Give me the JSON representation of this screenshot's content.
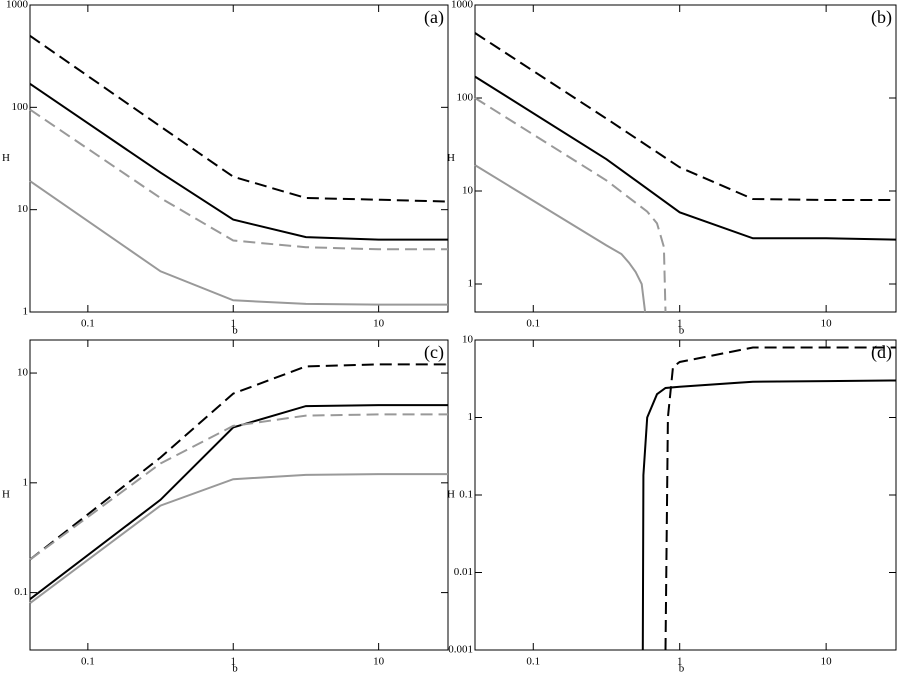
{
  "chart_data": [
    {
      "type": "line",
      "label": "(a)",
      "x_label": "b",
      "y_label": "H",
      "log_x": true,
      "log_y": true,
      "xlim": [
        0.04,
        30
      ],
      "ylim": [
        1,
        1000
      ],
      "xticks": [
        0.1,
        1,
        10
      ],
      "yticks": [
        1,
        10,
        100,
        1000
      ],
      "series": [
        {
          "color": "#000000",
          "style": "dashed",
          "x": [
            0.04,
            0.316,
            1,
            3.16,
            10,
            30
          ],
          "values": [
            500,
            65,
            21,
            13,
            12.5,
            12
          ]
        },
        {
          "color": "#000000",
          "style": "solid",
          "x": [
            0.04,
            0.316,
            1,
            3.16,
            10,
            30
          ],
          "values": [
            170,
            23,
            8,
            5.4,
            5.1,
            5.1
          ]
        },
        {
          "color": "#999999",
          "style": "dashed",
          "x": [
            0.04,
            0.316,
            1,
            3.16,
            10,
            30
          ],
          "values": [
            95,
            13,
            5,
            4.3,
            4.1,
            4.1
          ]
        },
        {
          "color": "#999999",
          "style": "solid",
          "x": [
            0.04,
            0.316,
            1,
            3.16,
            10,
            30
          ],
          "values": [
            19,
            2.5,
            1.3,
            1.2,
            1.18,
            1.18
          ]
        }
      ]
    },
    {
      "type": "line",
      "label": "(b)",
      "x_label": "b",
      "y_label": "H",
      "log_x": true,
      "log_y": true,
      "xlim": [
        0.04,
        30
      ],
      "ylim": [
        0.5,
        1000
      ],
      "xticks": [
        0.1,
        1,
        10
      ],
      "yticks": [
        1,
        10,
        100,
        1000
      ],
      "series": [
        {
          "color": "#000000",
          "style": "dashed",
          "x": [
            0.04,
            0.316,
            1,
            3.16,
            10,
            30
          ],
          "values": [
            500,
            60,
            18,
            8.2,
            8,
            8
          ]
        },
        {
          "color": "#000000",
          "style": "solid",
          "x": [
            0.04,
            0.316,
            1,
            3.16,
            10,
            30
          ],
          "values": [
            170,
            22,
            5.9,
            3.1,
            3.1,
            3
          ]
        },
        {
          "color": "#999999",
          "style": "dashed",
          "x": [
            0.04,
            0.316,
            0.6,
            0.7,
            0.78,
            0.8
          ],
          "values": [
            100,
            13,
            6,
            4.5,
            2.5,
            0.5
          ]
        },
        {
          "color": "#999999",
          "style": "solid",
          "x": [
            0.04,
            0.316,
            0.4,
            0.45,
            0.5,
            0.55,
            0.58
          ],
          "values": [
            19,
            2.6,
            2.1,
            1.7,
            1.35,
            1,
            0.5
          ]
        }
      ]
    },
    {
      "type": "line",
      "label": "(c)",
      "x_label": "b",
      "y_label": "H",
      "log_x": true,
      "log_y": true,
      "xlim": [
        0.04,
        30
      ],
      "ylim": [
        0.03,
        20
      ],
      "xticks": [
        0.1,
        1,
        10
      ],
      "yticks": [
        0.1,
        1,
        10
      ],
      "series": [
        {
          "color": "#000000",
          "style": "dashed",
          "x": [
            0.04,
            0.316,
            1,
            3.16,
            10,
            30
          ],
          "values": [
            0.2,
            1.7,
            6.5,
            11.5,
            12,
            12
          ]
        },
        {
          "color": "#000000",
          "style": "solid",
          "x": [
            0.04,
            0.316,
            1,
            3.16,
            10,
            30
          ],
          "values": [
            0.087,
            0.7,
            3.2,
            5,
            5.1,
            5.1
          ]
        },
        {
          "color": "#999999",
          "style": "dashed",
          "x": [
            0.04,
            0.316,
            1,
            3.16,
            10,
            30
          ],
          "values": [
            0.2,
            1.5,
            3.3,
            4.1,
            4.2,
            4.2
          ]
        },
        {
          "color": "#999999",
          "style": "solid",
          "x": [
            0.04,
            0.316,
            1,
            3.16,
            10,
            30
          ],
          "values": [
            0.08,
            0.62,
            1.08,
            1.18,
            1.2,
            1.2
          ]
        }
      ]
    },
    {
      "type": "line",
      "label": "(d)",
      "x_label": "b",
      "y_label": "H",
      "log_x": true,
      "log_y": true,
      "xlim": [
        0.04,
        30
      ],
      "ylim": [
        0.001,
        10
      ],
      "xticks": [
        0.1,
        1,
        10
      ],
      "yticks": [
        0.001,
        0.01,
        0.1,
        1,
        10
      ],
      "series": [
        {
          "color": "#000000",
          "style": "dashed",
          "x": [
            0.8,
            0.83,
            0.9,
            1,
            3.16,
            10,
            30
          ],
          "values": [
            0.001,
            1,
            4.5,
            5.2,
            8,
            8,
            8
          ]
        },
        {
          "color": "#000000",
          "style": "solid",
          "x": [
            0.56,
            0.565,
            0.6,
            0.7,
            0.8,
            1,
            3.16,
            10,
            30
          ],
          "values": [
            0.001,
            0.18,
            1,
            2,
            2.4,
            2.5,
            2.9,
            2.95,
            3
          ]
        }
      ]
    }
  ]
}
